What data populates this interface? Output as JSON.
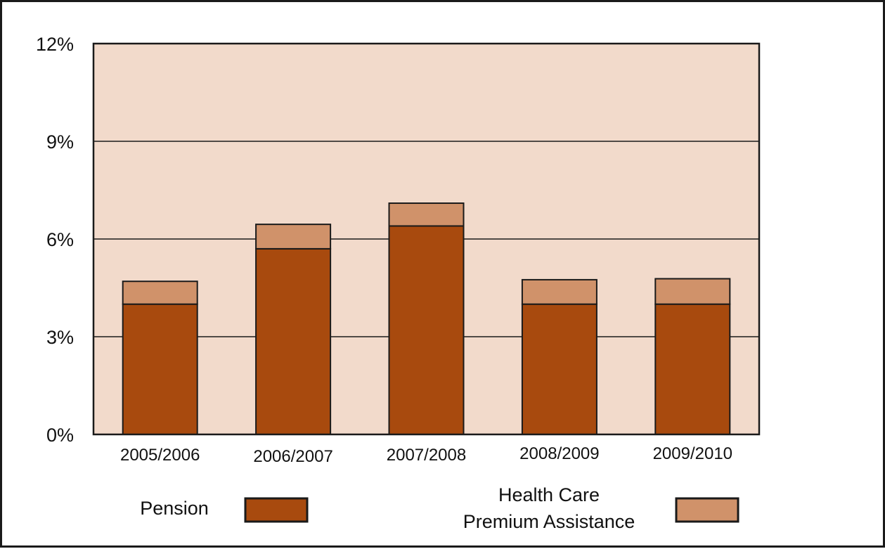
{
  "chart_data": {
    "type": "bar",
    "stacked": true,
    "categories": [
      "2005/2006",
      "2006/2007",
      "2007/2008",
      "2008/2009",
      "2009/2010"
    ],
    "series": [
      {
        "name": "Pension",
        "values": [
          4.0,
          5.7,
          6.4,
          4.0,
          4.0
        ],
        "color": "#a84a0e"
      },
      {
        "name": "Health Care Premium Assistance",
        "values": [
          0.7,
          0.75,
          0.7,
          0.75,
          0.78
        ],
        "color": "#d0926a"
      }
    ],
    "legend_lines": [
      [
        "Pension"
      ],
      [
        "Health Care",
        "Premium Assistance"
      ]
    ],
    "ylim": [
      0,
      12
    ],
    "yticks": [
      0,
      3,
      6,
      9,
      12
    ],
    "ytick_labels": [
      "0%",
      "3%",
      "6%",
      "9%",
      "12%"
    ],
    "grid": true,
    "legend_position": "bottom",
    "plot_background": "#f2dacb"
  }
}
